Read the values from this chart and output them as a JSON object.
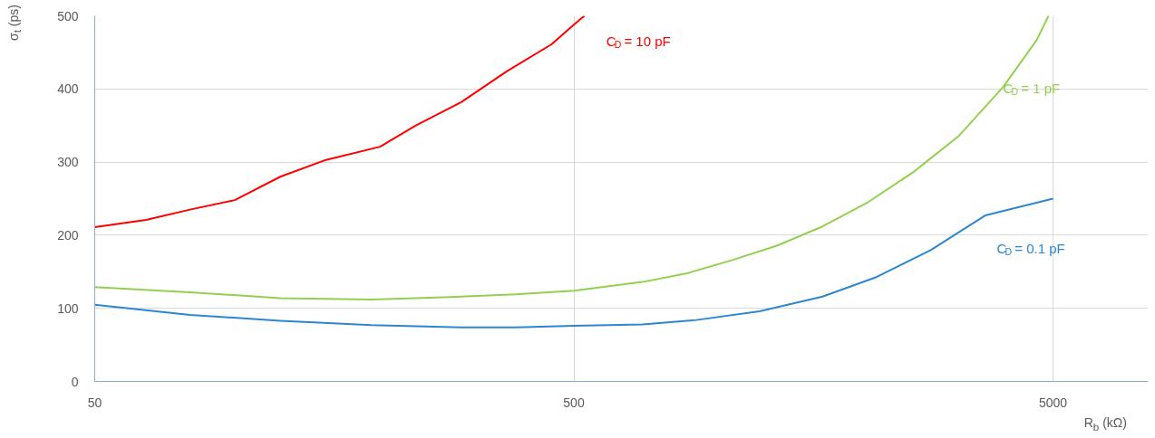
{
  "chart_data": {
    "type": "line",
    "xlabel": "R$_{b}$ (kΩ)",
    "ylabel": "σ$_{t}$ (ps)",
    "log": "x",
    "xlim": [
      50,
      7900
    ],
    "xticks": [
      50,
      500,
      5000
    ],
    "ylim": [
      0,
      500
    ],
    "yticks": [
      0,
      100,
      200,
      300,
      400,
      500
    ],
    "grid": true,
    "marker": "none",
    "line_style": "solid",
    "series": [
      {
        "name": "C$_{D}$ = 10 pF",
        "color": "#ff0000",
        "x": [
          50,
          64,
          79,
          98,
          122,
          152,
          197,
          234,
          291,
          362,
          449,
          500,
          526
        ],
        "values": [
          211,
          221,
          235,
          248,
          280,
          303,
          321,
          350,
          382,
          424,
          461,
          488,
          500
        ]
      },
      {
        "name": "C$_{D}$ = 1 pF",
        "color": "#92d050",
        "x": [
          50,
          79,
          122,
          189,
          267,
          378,
          500,
          695,
          862,
          1071,
          1330,
          1652,
          2054,
          2552,
          3171,
          3938,
          4625,
          4893
        ],
        "values": [
          129,
          122,
          114,
          112,
          115,
          119,
          124,
          136,
          148,
          166,
          186,
          212,
          245,
          286,
          335,
          403,
          467,
          500
        ]
      },
      {
        "name": "C$_{D}$ = 0.1 pF",
        "color": "#2e86d1",
        "x": [
          50,
          79,
          122,
          189,
          291,
          378,
          500,
          695,
          900,
          1220,
          1652,
          2145,
          2783,
          3611,
          5000
        ],
        "values": [
          105,
          91,
          83,
          77,
          74,
          74,
          76,
          78,
          84,
          96,
          116,
          143,
          180,
          227,
          250
        ]
      }
    ]
  }
}
